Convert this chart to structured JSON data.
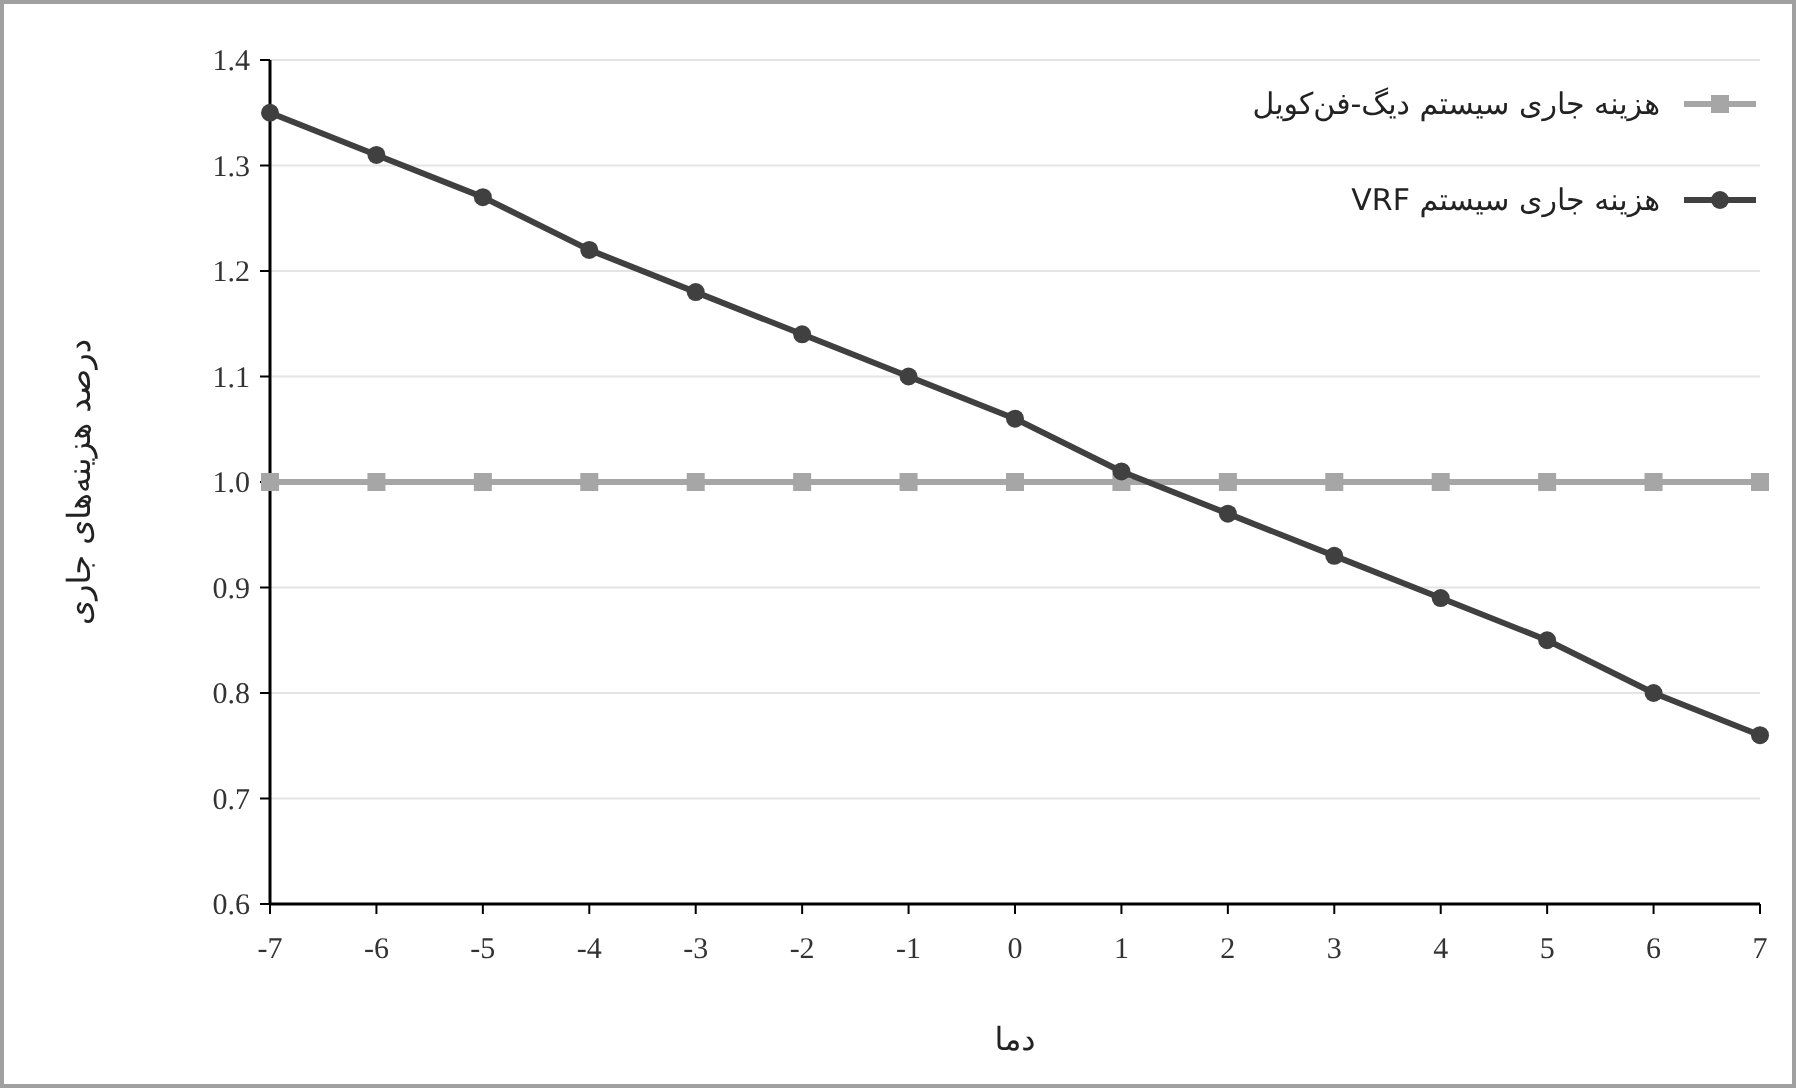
{
  "chart_data": {
    "type": "line",
    "xlabel": "دما",
    "ylabel": "درصد هزینه‌های جاری",
    "x": [
      -7,
      -6,
      -5,
      -4,
      -3,
      -2,
      -1,
      0,
      1,
      2,
      3,
      4,
      5,
      6,
      7
    ],
    "xlim": [
      -7,
      7
    ],
    "xticks": [
      -7,
      -6,
      -5,
      -4,
      -3,
      -2,
      -1,
      0,
      1,
      2,
      3,
      4,
      5,
      6,
      7
    ],
    "ylim": [
      0.6,
      1.4
    ],
    "yticks": [
      {
        "value": 0.6,
        "label": "0.6"
      },
      0.7,
      0.8,
      0.9,
      {
        "value": 1.0,
        "label": "1.0"
      },
      1.1,
      1.2,
      1.3,
      1.4
    ],
    "grid": "y",
    "legend": "top right",
    "line_style": "solid",
    "series": [
      {
        "name": "هزینه جاری سیستم دیگ-فن‌کویل",
        "color": "#a6a6a6",
        "marker": "square",
        "values": [
          1,
          1,
          1,
          1,
          1,
          1,
          1,
          1,
          1,
          1,
          1,
          1,
          1,
          1,
          1
        ]
      },
      {
        "name": "هزینه جاری سیستم VRF",
        "color": "#404040",
        "marker": "circle",
        "values": [
          1.35,
          1.31,
          1.27,
          1.22,
          1.18,
          1.14,
          1.1,
          1.06,
          1.01,
          0.97,
          0.93,
          0.89,
          0.85,
          0.8,
          0.76
        ]
      }
    ]
  }
}
